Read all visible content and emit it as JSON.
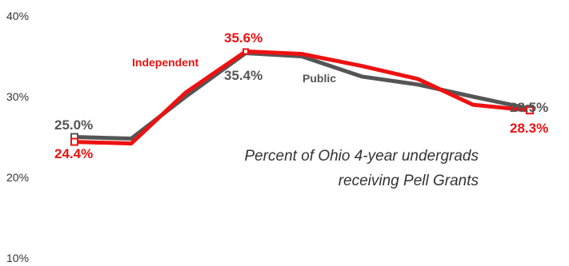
{
  "chart_data": {
    "type": "line",
    "title": "",
    "xlabel": "",
    "ylabel": "",
    "ylim": [
      10,
      40
    ],
    "yticks": [
      "10%",
      "20%",
      "30%",
      "40%"
    ],
    "grid": false,
    "legend": "inline labels",
    "annotation": [
      "Percent of Ohio 4-year undergrads",
      "receiving Pell Grants"
    ],
    "x": [
      1,
      2,
      3,
      4,
      5,
      6,
      7,
      8,
      9
    ],
    "series": [
      {
        "name": "Public",
        "color": "#555555",
        "values": [
          25.0,
          24.8,
          30.0,
          35.4,
          35.0,
          32.5,
          31.5,
          30.0,
          28.5
        ],
        "start_label": "25.0%",
        "end_label": "28.5%",
        "peak_label": "35.4%"
      },
      {
        "name": "Independent",
        "color": "#ee1111",
        "values": [
          24.4,
          24.2,
          30.5,
          35.6,
          35.3,
          33.8,
          32.2,
          29.0,
          28.3
        ],
        "start_label": "24.4%",
        "end_label": "28.3%",
        "peak_label": "35.6%"
      }
    ]
  }
}
